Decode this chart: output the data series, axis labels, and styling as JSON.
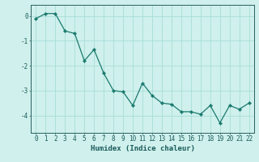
{
  "x": [
    0,
    1,
    2,
    3,
    4,
    5,
    6,
    7,
    8,
    9,
    10,
    11,
    12,
    13,
    14,
    15,
    16,
    17,
    18,
    19,
    20,
    21,
    22
  ],
  "y": [
    -0.1,
    0.1,
    0.1,
    -0.6,
    -0.7,
    -1.8,
    -1.35,
    -2.3,
    -3.0,
    -3.05,
    -3.6,
    -2.7,
    -3.2,
    -3.5,
    -3.55,
    -3.85,
    -3.85,
    -3.95,
    -3.6,
    -4.3,
    -3.6,
    -3.75,
    -3.5
  ],
  "line_color": "#1a7a6e",
  "marker": "D",
  "marker_size": 2.2,
  "bg_color": "#cff0ec",
  "grid_color": "#a8ddd8",
  "axis_color": "#2a6060",
  "xlabel": "Humidex (Indice chaleur)",
  "xlim": [
    -0.5,
    22.5
  ],
  "ylim": [
    -4.7,
    0.45
  ],
  "yticks": [
    0,
    -1,
    -2,
    -3,
    -4
  ],
  "xticks": [
    0,
    1,
    2,
    3,
    4,
    5,
    6,
    7,
    8,
    9,
    10,
    11,
    12,
    13,
    14,
    15,
    16,
    17,
    18,
    19,
    20,
    21,
    22
  ],
  "tick_color": "#1a5a5a",
  "font_size": 5.5,
  "label_font_size": 6.5
}
